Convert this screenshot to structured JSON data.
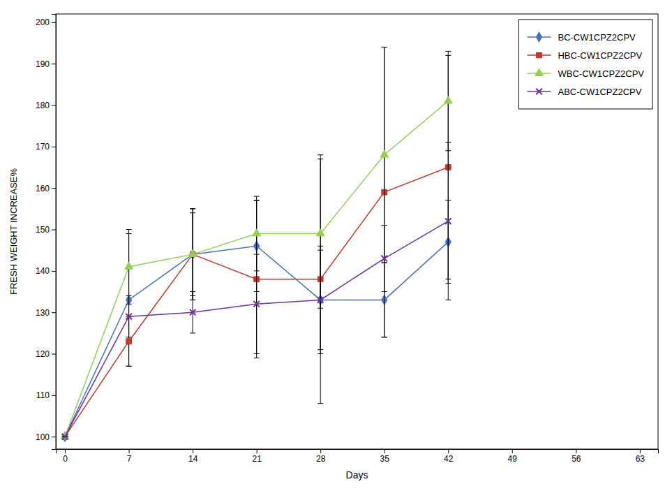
{
  "chart_data": {
    "type": "line",
    "xlabel": "Days",
    "ylabel": "FRESH WEIGHT INCREASE%",
    "x": [
      0,
      7,
      14,
      21,
      28,
      35,
      42
    ],
    "series": [
      {
        "name": "BC-CW1CPZ2CPV",
        "color": "#4472C4",
        "marker": "diamond",
        "values": [
          100,
          133,
          144,
          146,
          133,
          133,
          147
        ],
        "errors": [
          0,
          16,
          11,
          11,
          13,
          9,
          10
        ]
      },
      {
        "name": "HBC-CW1CPZ2CPV",
        "color": "#C0392B",
        "marker": "square",
        "values": [
          100,
          123,
          144,
          138,
          138,
          159,
          165
        ],
        "errors": [
          0,
          6,
          10,
          19,
          30,
          35,
          27
        ]
      },
      {
        "name": "WBC-CW1CPZ2CPV",
        "color": "#92D050",
        "marker": "triangle",
        "values": [
          100,
          141,
          144,
          149,
          149,
          168,
          181
        ],
        "errors": [
          0,
          9,
          11,
          9,
          18,
          26,
          12
        ]
      },
      {
        "name": "ABC-CW1CPZ2CPV",
        "color": "#7030A0",
        "marker": "x",
        "values": [
          100,
          129,
          130,
          132,
          133,
          143,
          152
        ],
        "errors": [
          0,
          5,
          5,
          12,
          12,
          8,
          19
        ]
      }
    ],
    "xlim": [
      -1,
      65
    ],
    "ylim": [
      97,
      202
    ],
    "xticks": [
      0,
      7,
      14,
      21,
      28,
      35,
      42,
      49,
      56,
      63
    ],
    "yticks": [
      100,
      110,
      120,
      130,
      140,
      150,
      160,
      170,
      180,
      190,
      200
    ],
    "grid": false,
    "legend": "upper right"
  }
}
